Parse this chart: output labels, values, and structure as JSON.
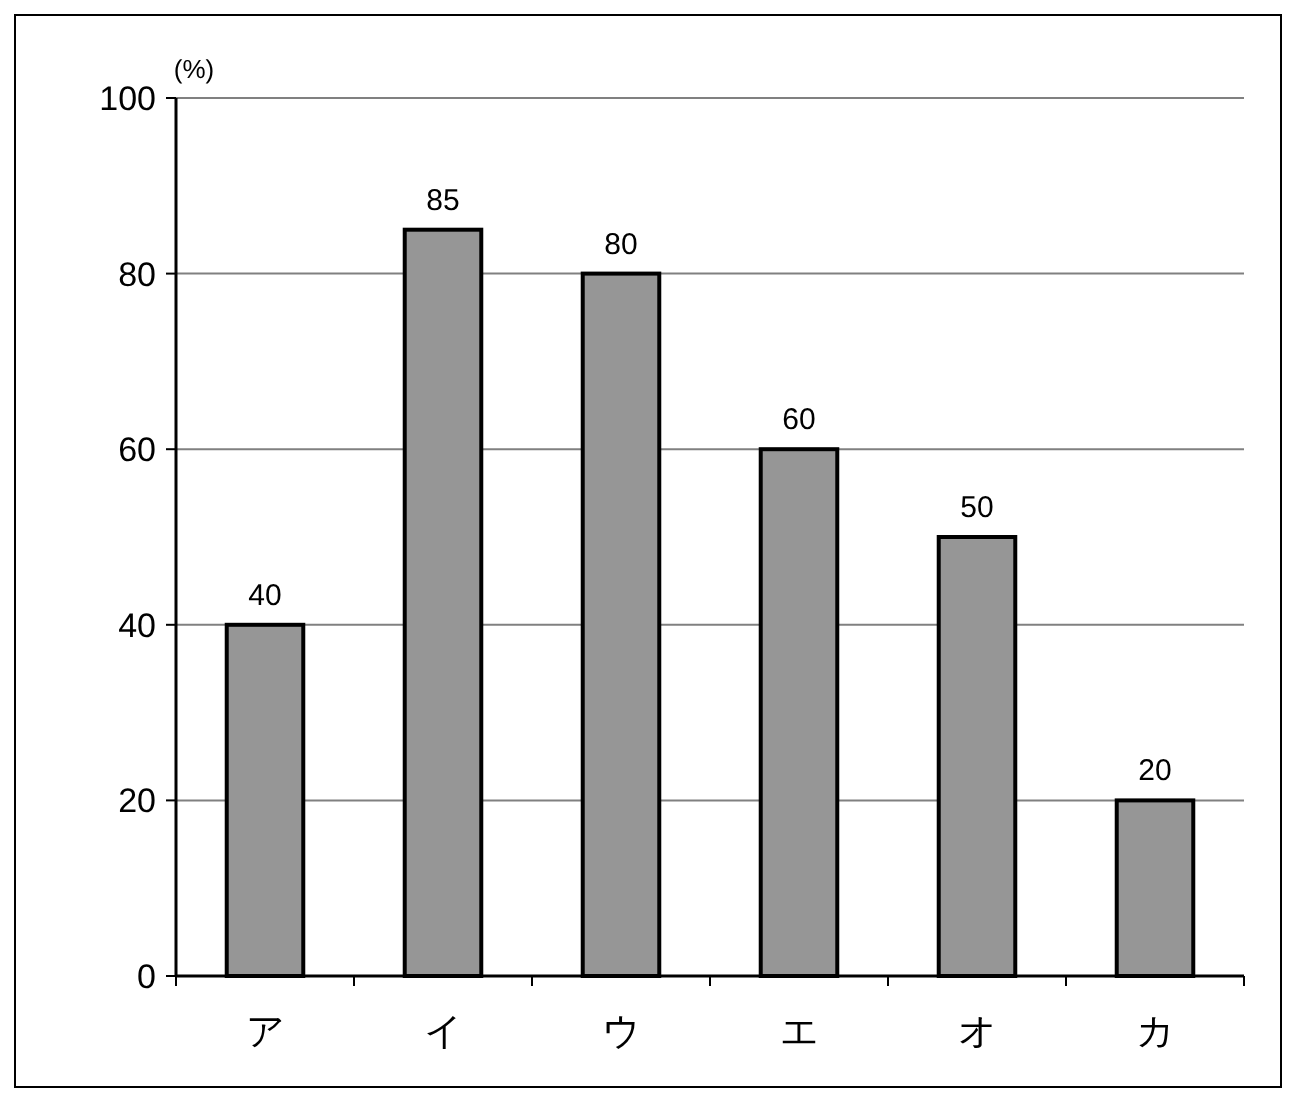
{
  "chart_data": {
    "type": "bar",
    "ylabel": "(%)",
    "categories": [
      "ア",
      "イ",
      "ウ",
      "エ",
      "オ",
      "カ"
    ],
    "values": [
      40,
      85,
      80,
      60,
      50,
      20
    ],
    "color": "#969696",
    "ylim": [
      0,
      100
    ],
    "yticks": [
      0,
      20,
      40,
      60,
      80,
      100
    ],
    "grid": "y",
    "data_labels": true
  }
}
